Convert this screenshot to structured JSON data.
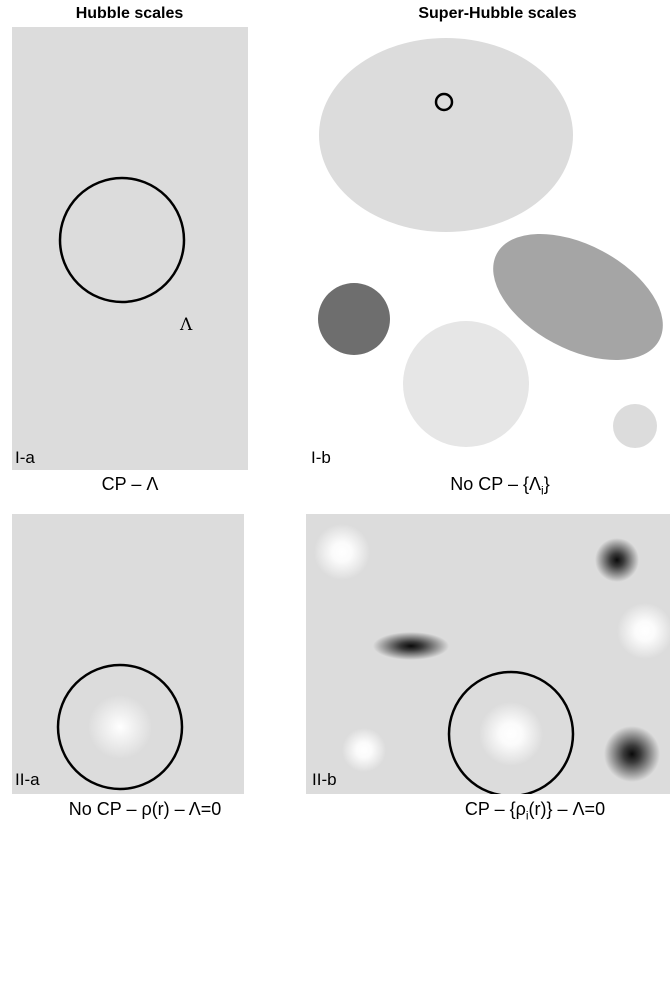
{
  "headers": {
    "left": "Hubble scales",
    "right": "Super-Hubble scales"
  },
  "panels": {
    "i_a": {
      "label": "I-a",
      "caption": "CP – Λ",
      "symbol": "Λ"
    },
    "i_b": {
      "label": "I-b",
      "caption_pre": "No CP – {Λ",
      "caption_sub": "i",
      "caption_post": "}"
    },
    "ii_a": {
      "label": "II-a",
      "caption": "No CP – ρ(r) – Λ=0"
    },
    "ii_b": {
      "label": "II-b",
      "caption_pre": "CP – {ρ",
      "caption_sub": "i",
      "caption_post": "(r)} – Λ=0"
    }
  }
}
